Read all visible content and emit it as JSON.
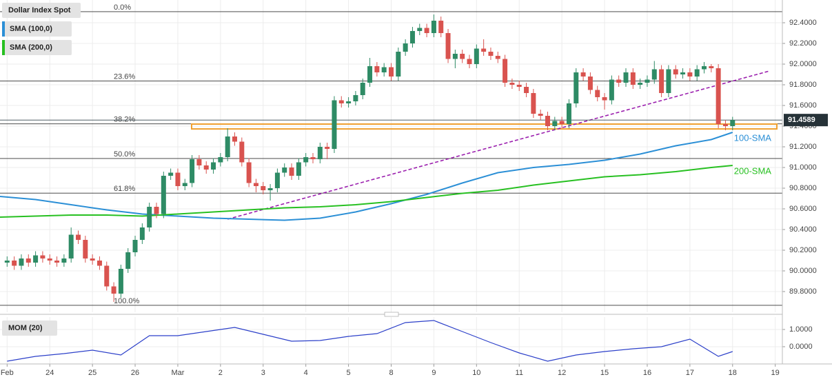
{
  "chart_data": [
    {
      "type": "candlestick",
      "title": "Dollar Index Spot",
      "x": [
        0,
        4,
        8,
        12,
        16,
        20,
        24,
        28,
        32,
        36,
        40,
        44,
        48,
        52,
        56,
        60,
        64,
        68,
        72,
        76,
        80,
        84,
        88,
        92,
        96,
        100,
        104,
        108,
        112,
        116,
        120,
        124,
        128,
        132,
        136,
        140,
        144,
        148,
        152,
        156,
        160,
        164,
        168,
        172,
        176,
        180,
        184,
        188,
        192,
        196,
        200,
        204,
        208,
        212,
        216,
        220,
        224,
        228,
        232,
        236,
        240,
        244,
        248,
        252,
        256,
        260,
        264,
        268,
        272,
        276,
        280,
        284,
        288,
        292,
        296,
        300,
        304,
        308,
        312,
        316,
        320,
        324,
        328,
        332,
        336,
        340,
        344,
        348,
        352,
        356,
        360,
        364,
        368,
        372,
        376,
        380,
        384,
        388,
        392,
        396,
        400,
        404,
        408
      ],
      "open": [
        90.08,
        90.1,
        90.05,
        90.12,
        90.08,
        90.15,
        90.12,
        90.1,
        90.08,
        90.12,
        90.35,
        90.3,
        90.12,
        90.1,
        90.05,
        89.85,
        89.78,
        90.02,
        90.18,
        90.3,
        90.42,
        90.62,
        90.55,
        90.92,
        90.95,
        90.82,
        90.85,
        91.08,
        91.02,
        90.98,
        91.05,
        91.1,
        91.3,
        91.25,
        91.05,
        90.85,
        90.82,
        90.78,
        90.8,
        90.95,
        91.0,
        90.92,
        91.05,
        91.1,
        91.08,
        91.2,
        91.18,
        91.65,
        91.62,
        91.64,
        91.7,
        91.82,
        91.98,
        91.92,
        91.97,
        91.88,
        92.12,
        92.2,
        92.32,
        92.35,
        92.3,
        92.42,
        92.3,
        92.05,
        92.1,
        92.05,
        92.0,
        92.15,
        92.12,
        92.08,
        92.05,
        91.82,
        91.8,
        91.78,
        91.72,
        91.52,
        91.5,
        91.4,
        91.45,
        91.42,
        91.62,
        91.92,
        91.88,
        91.75,
        91.68,
        91.65,
        91.85,
        91.82,
        91.92,
        91.8,
        91.82,
        91.85,
        91.95,
        91.72,
        91.95,
        91.9,
        91.92,
        91.88,
        91.95,
        91.98,
        91.96,
        91.42,
        91.4
      ],
      "high": [
        90.14,
        90.14,
        90.16,
        90.16,
        90.19,
        90.19,
        90.16,
        90.14,
        90.16,
        90.42,
        90.39,
        90.34,
        90.16,
        90.14,
        90.09,
        89.89,
        90.06,
        90.22,
        90.34,
        90.46,
        90.66,
        90.66,
        90.96,
        90.99,
        90.99,
        90.89,
        91.12,
        91.12,
        91.06,
        91.09,
        91.14,
        91.38,
        91.34,
        91.29,
        91.09,
        90.89,
        90.86,
        90.84,
        90.99,
        91.04,
        91.04,
        91.09,
        91.14,
        91.14,
        91.24,
        91.24,
        91.69,
        91.69,
        91.68,
        91.74,
        91.86,
        92.06,
        92.02,
        92.01,
        92.01,
        92.16,
        92.24,
        92.36,
        92.39,
        92.39,
        92.48,
        92.46,
        92.34,
        92.14,
        92.14,
        92.09,
        92.19,
        92.24,
        92.16,
        92.12,
        92.09,
        91.86,
        91.84,
        91.82,
        91.76,
        91.56,
        91.54,
        91.49,
        91.49,
        91.66,
        91.96,
        91.96,
        91.92,
        91.79,
        91.72,
        91.89,
        91.89,
        91.96,
        91.96,
        91.86,
        91.89,
        92.03,
        91.99,
        91.99,
        91.99,
        91.96,
        91.96,
        91.99,
        92.02,
        92.0,
        92.0,
        91.46,
        91.49
      ],
      "low": [
        90.04,
        90.01,
        90.01,
        90.04,
        90.04,
        90.08,
        90.06,
        90.04,
        90.04,
        90.08,
        90.26,
        90.08,
        90.06,
        90.01,
        89.81,
        89.7,
        89.74,
        89.98,
        90.14,
        90.26,
        90.38,
        90.51,
        90.51,
        90.88,
        90.78,
        90.78,
        90.81,
        90.98,
        90.94,
        90.94,
        91.01,
        91.06,
        91.21,
        91.01,
        90.81,
        90.76,
        90.74,
        90.68,
        90.76,
        90.91,
        90.88,
        90.88,
        91.01,
        91.04,
        91.04,
        91.08,
        91.14,
        91.58,
        91.58,
        91.6,
        91.66,
        91.78,
        91.88,
        91.88,
        91.84,
        91.84,
        92.08,
        92.16,
        92.28,
        92.26,
        92.26,
        92.26,
        92.01,
        91.96,
        92.01,
        91.96,
        91.96,
        92.08,
        92.04,
        92.01,
        91.78,
        91.76,
        91.74,
        91.68,
        91.48,
        91.46,
        91.36,
        91.36,
        91.38,
        91.38,
        91.58,
        91.84,
        91.71,
        91.64,
        91.56,
        91.61,
        91.78,
        91.78,
        91.76,
        91.76,
        91.78,
        91.81,
        91.68,
        91.68,
        91.86,
        91.86,
        91.84,
        91.84,
        91.91,
        91.92,
        91.38,
        91.36,
        91.36
      ],
      "close": [
        90.1,
        90.05,
        90.12,
        90.08,
        90.15,
        90.12,
        90.1,
        90.08,
        90.12,
        90.35,
        90.3,
        90.12,
        90.1,
        90.05,
        89.85,
        89.78,
        90.02,
        90.18,
        90.3,
        90.42,
        90.62,
        90.55,
        90.92,
        90.95,
        90.82,
        90.85,
        91.08,
        91.02,
        90.98,
        91.05,
        91.1,
        91.3,
        91.25,
        91.05,
        90.85,
        90.82,
        90.78,
        90.8,
        90.95,
        91.0,
        90.92,
        91.05,
        91.1,
        91.08,
        91.2,
        91.18,
        91.65,
        91.62,
        91.64,
        91.7,
        91.82,
        91.98,
        91.92,
        91.97,
        91.88,
        92.12,
        92.2,
        92.32,
        92.35,
        92.3,
        92.42,
        92.3,
        92.05,
        92.1,
        92.05,
        92.0,
        92.15,
        92.12,
        92.08,
        92.05,
        91.82,
        91.8,
        91.78,
        91.72,
        91.52,
        91.5,
        91.4,
        91.45,
        91.42,
        91.62,
        91.92,
        91.88,
        91.75,
        91.68,
        91.65,
        91.85,
        91.82,
        91.92,
        91.8,
        91.82,
        91.85,
        91.95,
        91.72,
        91.95,
        91.9,
        91.92,
        91.88,
        91.95,
        91.98,
        91.96,
        91.42,
        91.4,
        91.4589
      ],
      "up_color": "#2e8b65",
      "down_color": "#d9534f",
      "xlim": [
        -4,
        436
      ],
      "xticks": [
        {
          "value": 0,
          "label": "Feb"
        },
        {
          "value": 24,
          "label": "24"
        },
        {
          "value": 48,
          "label": "25"
        },
        {
          "value": 72,
          "label": "26"
        },
        {
          "value": 96,
          "label": "Mar"
        },
        {
          "value": 120,
          "label": "2"
        },
        {
          "value": 144,
          "label": "3"
        },
        {
          "value": 168,
          "label": "4"
        },
        {
          "value": 192,
          "label": "5"
        },
        {
          "value": 216,
          "label": "8"
        },
        {
          "value": 240,
          "label": "9"
        },
        {
          "value": 264,
          "label": "10"
        },
        {
          "value": 288,
          "label": "11"
        },
        {
          "value": 312,
          "label": "12"
        },
        {
          "value": 336,
          "label": "15"
        },
        {
          "value": 360,
          "label": "16"
        },
        {
          "value": 384,
          "label": "17"
        },
        {
          "value": 408,
          "label": "18"
        },
        {
          "value": 432,
          "label": "19"
        }
      ],
      "ylim": [
        89.6,
        92.62
      ],
      "yticks": [
        {
          "value": 92.4,
          "label": "92.4000"
        },
        {
          "value": 92.2,
          "label": "92.2000"
        },
        {
          "value": 92.0,
          "label": "92.0000"
        },
        {
          "value": 91.8,
          "label": "91.8000"
        },
        {
          "value": 91.6,
          "label": "91.6000"
        },
        {
          "value": 91.4,
          "label": "91.4000"
        },
        {
          "value": 91.2,
          "label": "91.2000"
        },
        {
          "value": 91.0,
          "label": "91.0000"
        },
        {
          "value": 90.8,
          "label": "90.8000"
        },
        {
          "value": 90.6,
          "label": "90.6000"
        },
        {
          "value": 90.4,
          "label": "90.4000"
        },
        {
          "value": 90.2,
          "label": "90.2000"
        },
        {
          "value": 90.0,
          "label": "90.0000"
        },
        {
          "value": 89.8,
          "label": "89.8000"
        }
      ],
      "grid": true,
      "series": [
        {
          "name": "SMA (100,0)",
          "label": "100-SMA",
          "color": "#2b8fd6",
          "x": [
            -4,
            16,
            36,
            56,
            76,
            96,
            116,
            136,
            156,
            176,
            196,
            216,
            236,
            256,
            276,
            296,
            316,
            336,
            356,
            376,
            396,
            408
          ],
          "values": [
            90.72,
            90.69,
            90.64,
            90.59,
            90.55,
            90.53,
            90.51,
            90.5,
            90.49,
            90.51,
            90.57,
            90.65,
            90.74,
            90.85,
            90.95,
            91.0,
            91.03,
            91.07,
            91.13,
            91.21,
            91.27,
            91.34
          ]
        },
        {
          "name": "SMA (200,0)",
          "label": "200-SMA",
          "color": "#27c021",
          "x": [
            -4,
            16,
            36,
            56,
            76,
            96,
            116,
            136,
            156,
            176,
            196,
            216,
            236,
            256,
            276,
            296,
            316,
            336,
            356,
            376,
            396,
            408
          ],
          "values": [
            90.52,
            90.53,
            90.54,
            90.54,
            90.53,
            90.55,
            90.57,
            90.59,
            90.61,
            90.62,
            90.64,
            90.67,
            90.71,
            90.75,
            90.78,
            90.83,
            90.87,
            90.91,
            90.93,
            90.96,
            91.0,
            91.02
          ]
        }
      ],
      "fib_levels": [
        {
          "label": "0.0%",
          "value": 92.507
        },
        {
          "label": "23.6%",
          "value": 91.837
        },
        {
          "label": "38.2%",
          "value": 91.422
        },
        {
          "label": "50.0%",
          "value": 91.087
        },
        {
          "label": "61.8%",
          "value": 90.752
        },
        {
          "label": "100.0%",
          "value": 89.667
        }
      ],
      "fib_color": "#333333",
      "trendline": {
        "x": [
          124,
          428
        ],
        "values": [
          90.5,
          91.93
        ],
        "color": "#9b1fae"
      },
      "zone": {
        "values": [
          91.373,
          91.42
        ],
        "color": "#f0a030"
      },
      "last_price": {
        "value": 91.4589,
        "label": "91.4589"
      }
    },
    {
      "type": "line",
      "title": "MOM (20)",
      "color": "#2b3fc9",
      "x": [
        0,
        16,
        32,
        48,
        64,
        80,
        96,
        112,
        128,
        144,
        160,
        176,
        192,
        208,
        224,
        240,
        256,
        272,
        288,
        304,
        320,
        336,
        352,
        368,
        384,
        400,
        408
      ],
      "values": [
        -0.84,
        -0.56,
        -0.4,
        -0.2,
        -0.48,
        0.64,
        0.64,
        0.88,
        1.12,
        0.72,
        0.32,
        0.36,
        0.6,
        0.76,
        1.4,
        1.52,
        0.88,
        0.24,
        -0.36,
        -0.84,
        -0.48,
        -0.28,
        -0.12,
        0,
        0.44,
        -0.56,
        -0.28
      ],
      "xlim": [
        -4,
        436
      ],
      "ylim": [
        -1,
        1.72
      ],
      "yticks": [
        {
          "value": 1,
          "label": "1.0000"
        },
        {
          "value": 0,
          "label": "0.0000"
        }
      ]
    }
  ]
}
